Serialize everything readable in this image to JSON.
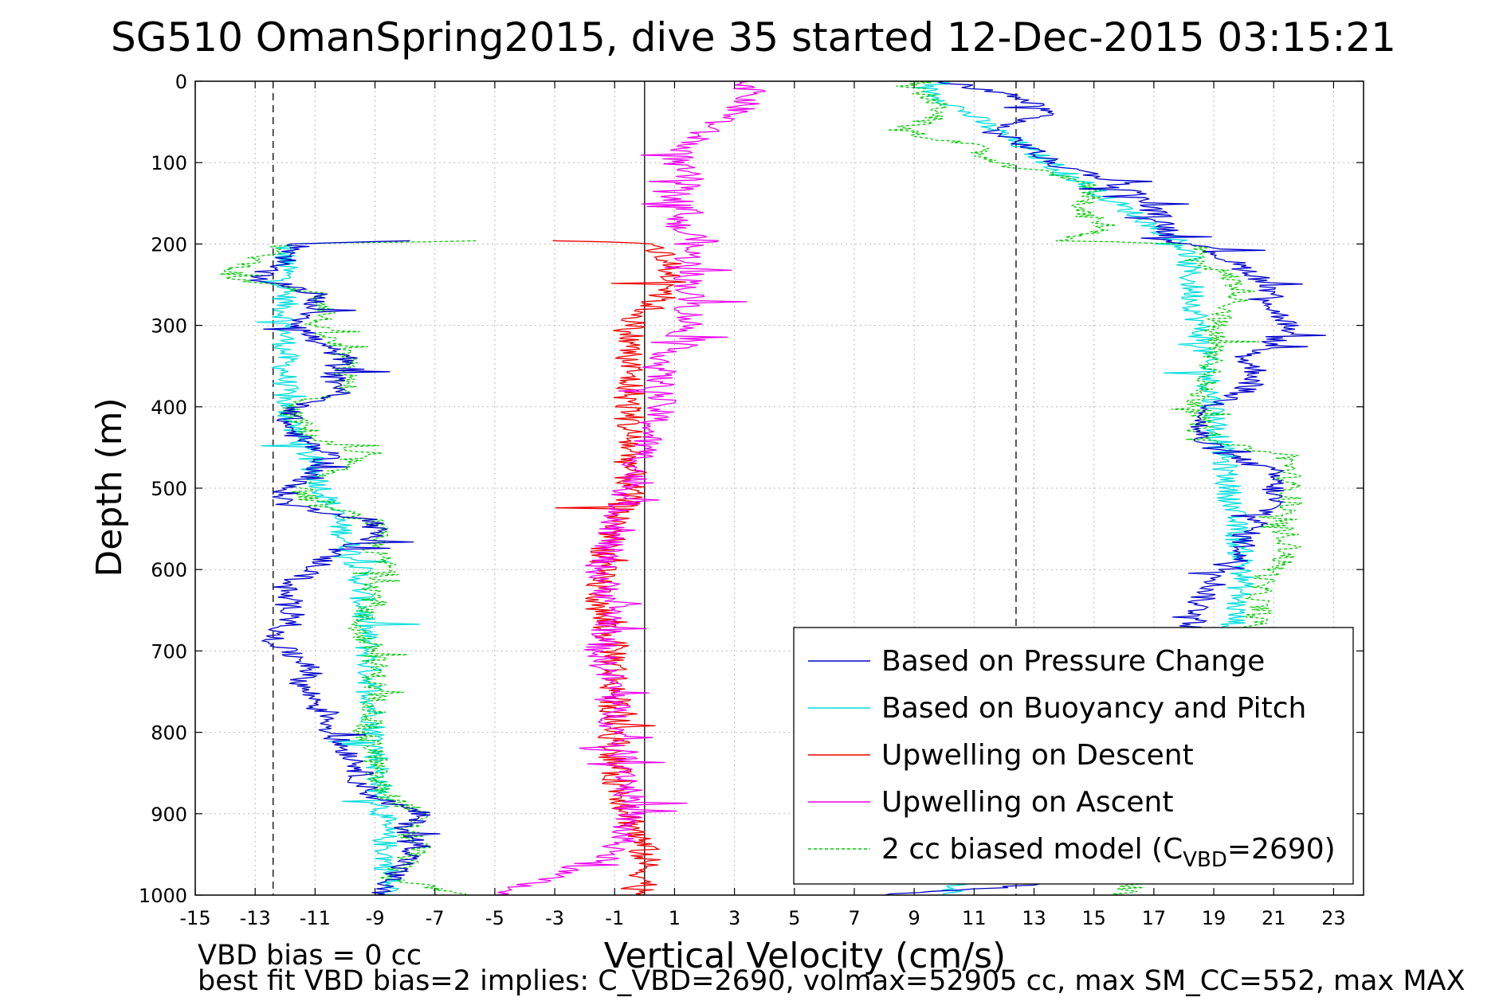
{
  "figure": {
    "title": "SG510 OmanSpring2015, dive 35 started 12-Dec-2015 03:15:21",
    "footnote_line1": "VBD bias = 0 cc",
    "footnote_line2": "best fit VBD bias=2 implies: C_VBD=2690, volmax=52905 cc, max SM_CC=552, max MAX"
  },
  "chart_data": {
    "type": "line",
    "title": "SG510 OmanSpring2015, dive 35 started 12-Dec-2015 03:15:21",
    "xlabel": "Vertical Velocity (cm/s)",
    "ylabel": "Depth (m)",
    "xlim": [
      -15,
      24
    ],
    "ylim": [
      0,
      1000
    ],
    "y_reversed": true,
    "x_ticks": [
      -15,
      -13,
      -11,
      -9,
      -7,
      -5,
      -3,
      -1,
      1,
      3,
      5,
      7,
      9,
      11,
      13,
      15,
      17,
      19,
      21,
      23
    ],
    "y_ticks": [
      0,
      100,
      200,
      300,
      400,
      500,
      600,
      700,
      800,
      900,
      1000
    ],
    "grid": true,
    "legend_position": "bottom-right",
    "vertical_lines": [
      {
        "x": 0,
        "style": "solid",
        "color": "#000000"
      },
      {
        "x": -12.4,
        "style": "dashed",
        "color": "#000000"
      },
      {
        "x": 12.4,
        "style": "dashed",
        "color": "#000000"
      }
    ],
    "series": [
      {
        "name": "Based on Pressure Change",
        "color": "#0000cc",
        "style": "solid",
        "depth": [
          0,
          20,
          40,
          60,
          80,
          100,
          120,
          140,
          160,
          180,
          196,
          200,
          220,
          240,
          260,
          280,
          300,
          320,
          340,
          360,
          380,
          400,
          420,
          440,
          460,
          480,
          500,
          520,
          540,
          560,
          580,
          600,
          620,
          640,
          660,
          680,
          700,
          720,
          740,
          760,
          780,
          800,
          820,
          840,
          860,
          880,
          900,
          920,
          940,
          960,
          980,
          1000
        ],
        "descent": [
          null,
          null,
          null,
          null,
          null,
          null,
          null,
          null,
          null,
          null,
          -7.8,
          -11.5,
          -12.0,
          -13.0,
          -11.0,
          -11.0,
          -11.5,
          -11.0,
          -10.0,
          -10.5,
          -10.0,
          -11.5,
          -12.0,
          -11.5,
          -10.5,
          -11.0,
          -12.0,
          -12.0,
          -9.0,
          -9.0,
          -10.5,
          -11.0,
          -12.0,
          -12.0,
          -11.5,
          -12.5,
          -12.0,
          -11.0,
          -11.5,
          -11.0,
          -10.5,
          -10.5,
          -10.0,
          -9.5,
          -9.5,
          -9.0,
          -7.5,
          -8.0,
          -7.5,
          -8.0,
          -8.5,
          -9.0
        ],
        "ascent": [
          10.0,
          12.5,
          13.5,
          11.5,
          12.8,
          13.5,
          15.5,
          16.5,
          17.0,
          17.5,
          17.5,
          18.5,
          19.5,
          20.5,
          21.0,
          21.0,
          21.5,
          21.0,
          20.0,
          20.5,
          20.0,
          19.0,
          18.5,
          18.5,
          19.5,
          21.0,
          21.0,
          21.0,
          20.5,
          20.0,
          20.0,
          19.5,
          19.0,
          18.5,
          18.5,
          18.0,
          18.5,
          19.0,
          19.0,
          18.5,
          18.5,
          18.0,
          18.0,
          18.5,
          18.5,
          18.5,
          18.0,
          17.5,
          17.0,
          16.5,
          16.0,
          8.0
        ]
      },
      {
        "name": "Based on Buoyancy and Pitch",
        "color": "#00dddd",
        "style": "solid",
        "depth": [
          0,
          200,
          400,
          600,
          800,
          1000
        ],
        "descent": [
          null,
          -12.0,
          -12.0,
          -9.5,
          -9.0,
          -8.5
        ],
        "ascent": [
          9.0,
          18.0,
          19.0,
          20.0,
          19.0,
          10.0
        ]
      },
      {
        "name": "Upwelling on Descent",
        "color": "#ee0000",
        "style": "solid",
        "depth": [
          196,
          200,
          250,
          300,
          350,
          400,
          450,
          500,
          550,
          600,
          650,
          700,
          750,
          800,
          850,
          900,
          950,
          1000
        ],
        "values": [
          -3.0,
          0.5,
          1.0,
          -0.5,
          -0.5,
          -0.5,
          -0.5,
          -0.5,
          -1.0,
          -1.5,
          -1.5,
          -1.0,
          -1.0,
          -1.0,
          -1.0,
          -0.5,
          0.0,
          0.0
        ]
      },
      {
        "name": "Upwelling on Ascent",
        "color": "#ee00ee",
        "style": "solid",
        "depth": [
          0,
          20,
          40,
          60,
          80,
          100,
          120,
          140,
          160,
          180,
          196,
          200,
          250,
          300,
          350,
          400,
          450,
          500,
          550,
          600,
          650,
          700,
          750,
          800,
          850,
          900,
          950,
          1000
        ],
        "values": [
          3.5,
          3.5,
          3.0,
          2.0,
          1.5,
          1.0,
          1.5,
          1.0,
          1.5,
          1.0,
          2.0,
          1.5,
          1.5,
          1.5,
          0.5,
          0.5,
          0.0,
          -0.5,
          -1.0,
          -1.5,
          -1.0,
          -1.5,
          -1.0,
          -1.0,
          -0.5,
          -0.5,
          -1.0,
          -5.0
        ]
      },
      {
        "name": "2 cc biased model (C_VBD=2690)",
        "color": "#00cc00",
        "style": "dashed",
        "depth": [
          0,
          20,
          40,
          60,
          80,
          100,
          120,
          140,
          160,
          180,
          196,
          200,
          220,
          240,
          260,
          280,
          300,
          320,
          340,
          360,
          380,
          400,
          420,
          440,
          460,
          480,
          500,
          520,
          540,
          560,
          580,
          600,
          620,
          640,
          660,
          680,
          700,
          720,
          740,
          760,
          780,
          800,
          820,
          840,
          860,
          880,
          900,
          920,
          940,
          960,
          980,
          1000
        ],
        "descent": [
          null,
          null,
          null,
          null,
          null,
          null,
          null,
          null,
          null,
          null,
          -5.5,
          -12.0,
          -13.0,
          -14.0,
          -11.0,
          -10.5,
          -11.0,
          -10.5,
          -10.0,
          -10.0,
          -10.0,
          -12.0,
          -11.5,
          -11.0,
          -9.5,
          -10.5,
          -11.5,
          -11.0,
          -9.0,
          -9.0,
          -9.0,
          -8.5,
          -9.0,
          -9.0,
          -9.5,
          -9.5,
          -9.0,
          -9.0,
          -9.0,
          -9.0,
          -9.0,
          -9.5,
          -9.0,
          -9.0,
          -9.0,
          -8.5,
          -7.5,
          -8.0,
          -7.5,
          -8.0,
          -8.5,
          -6.0
        ],
        "ascent": [
          8.5,
          9.5,
          10.0,
          8.5,
          11.0,
          11.5,
          14.5,
          15.0,
          14.5,
          15.5,
          14.0,
          18.5,
          18.5,
          19.5,
          20.0,
          19.5,
          19.0,
          19.0,
          19.0,
          19.0,
          18.5,
          18.5,
          18.5,
          18.5,
          21.5,
          21.5,
          21.5,
          21.5,
          21.0,
          21.5,
          21.5,
          21.0,
          20.5,
          20.5,
          20.5,
          20.0,
          20.5,
          20.0,
          20.0,
          19.5,
          19.5,
          19.0,
          19.0,
          19.0,
          19.0,
          18.5,
          18.5,
          18.0,
          17.5,
          17.0,
          16.5,
          16.0
        ]
      }
    ],
    "legend": [
      {
        "label": "Based on Pressure Change",
        "color": "#0000cc",
        "dash": false
      },
      {
        "label": "Based on Buoyancy and Pitch",
        "color": "#00dddd",
        "dash": false
      },
      {
        "label": "Upwelling on Descent",
        "color": "#ee0000",
        "dash": false
      },
      {
        "label": "Upwelling on Ascent",
        "color": "#ee00ee",
        "dash": false
      },
      {
        "label": "2 cc biased model (C",
        "sub": "VBD",
        "suffix": "=2690)",
        "color": "#00cc00",
        "dash": true
      }
    ]
  }
}
